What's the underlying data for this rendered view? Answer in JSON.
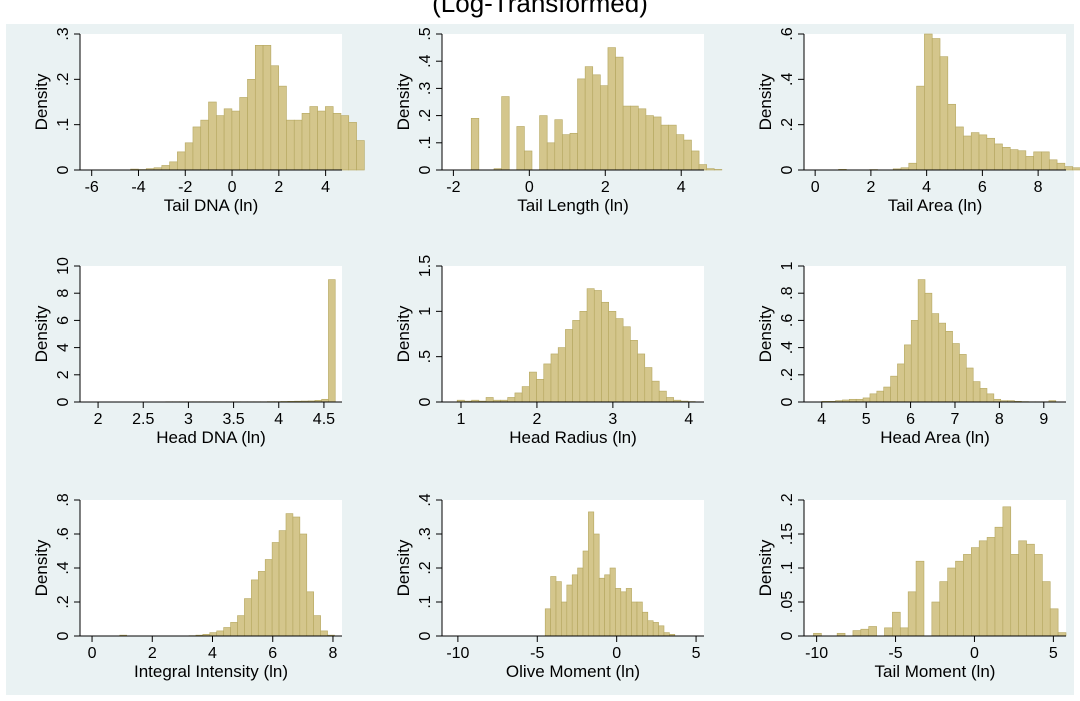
{
  "figure": {
    "title": "(Log-Transformed)",
    "colors": {
      "background": "#ffffff",
      "panel_bg": "#eaf2f3",
      "plot_bg": "#ffffff",
      "bar_fill": "#d4c68c",
      "bar_edge": "#b4a65e",
      "axis": "#000000"
    }
  },
  "chart_data": [
    {
      "type": "bar",
      "subtype": "histogram",
      "xlabel": "Tail DNA (ln)",
      "ylabel": "Density",
      "xlim": [
        -6.5,
        4.7
      ],
      "ylim": [
        0,
        0.3
      ],
      "xticks": [
        -6,
        -4,
        -2,
        0,
        2,
        4
      ],
      "xtick_labels": [
        "-6",
        "-4",
        "-2",
        "0",
        "2",
        "4"
      ],
      "yticks": [
        0,
        0.1,
        0.2,
        0.3
      ],
      "ytick_labels": [
        "0",
        ".1",
        ".2",
        ".3"
      ],
      "bin_start": -6.0,
      "bin_width": 0.333,
      "values": [
        0,
        0,
        0,
        0,
        0,
        0.002,
        0.001,
        0.003,
        0.005,
        0.01,
        0.018,
        0.04,
        0.06,
        0.095,
        0.11,
        0.15,
        0.12,
        0.135,
        0.13,
        0.16,
        0.2,
        0.275,
        0.275,
        0.23,
        0.185,
        0.11,
        0.11,
        0.125,
        0.14,
        0.13,
        0.14,
        0.125,
        0.12,
        0.105,
        0.065
      ]
    },
    {
      "type": "bar",
      "subtype": "histogram",
      "xlabel": "Tail Length (ln)",
      "ylabel": "Density",
      "xlim": [
        -2.3,
        4.6
      ],
      "ylim": [
        0,
        0.5
      ],
      "xticks": [
        -2,
        0,
        2,
        4
      ],
      "xtick_labels": [
        "-2",
        "0",
        "2",
        "4"
      ],
      "yticks": [
        0,
        0.1,
        0.2,
        0.3,
        0.4,
        0.5
      ],
      "ytick_labels": [
        "0",
        ".1",
        ".2",
        ".3",
        ".4",
        ".5"
      ],
      "bin_start": -1.53,
      "bin_width": 0.2,
      "values": [
        0.19,
        0,
        0,
        0.005,
        0.27,
        0,
        0.16,
        0.07,
        0,
        0.2,
        0.1,
        0.185,
        0.13,
        0.135,
        0.335,
        0.38,
        0.35,
        0.31,
        0.45,
        0.415,
        0.235,
        0.235,
        0.225,
        0.2,
        0.195,
        0.165,
        0.165,
        0.13,
        0.11,
        0.07,
        0.02,
        0.005,
        0.002
      ]
    },
    {
      "type": "bar",
      "subtype": "histogram",
      "xlabel": "Tail Area (ln)",
      "ylabel": "Density",
      "xlim": [
        -0.4,
        9.0
      ],
      "ylim": [
        0,
        0.6
      ],
      "xticks": [
        0,
        2,
        4,
        6,
        8
      ],
      "xtick_labels": [
        "0",
        "2",
        "4",
        "6",
        "8"
      ],
      "yticks": [
        0,
        0.2,
        0.4,
        0.6
      ],
      "ytick_labels": [
        "0",
        ".2",
        ".4",
        ".6"
      ],
      "bin_start": 0.0,
      "bin_width": 0.28,
      "values": [
        0,
        0,
        0,
        0.003,
        0,
        0,
        0,
        0.002,
        0,
        0,
        0.005,
        0.01,
        0.03,
        0.37,
        0.61,
        0.58,
        0.5,
        0.29,
        0.19,
        0.15,
        0.165,
        0.155,
        0.14,
        0.115,
        0.1,
        0.09,
        0.085,
        0.06,
        0.08,
        0.08,
        0.045,
        0.03,
        0.015,
        0.01,
        0.002
      ]
    },
    {
      "type": "bar",
      "subtype": "histogram",
      "xlabel": "Head DNA (ln)",
      "ylabel": "Density",
      "xlim": [
        1.8,
        4.7
      ],
      "ylim": [
        0,
        10
      ],
      "xticks": [
        2,
        2.5,
        3,
        3.5,
        4,
        4.5
      ],
      "xtick_labels": [
        "2",
        "2.5",
        "3",
        "3.5",
        "4",
        "4.5"
      ],
      "yticks": [
        0,
        2,
        4,
        6,
        8,
        10
      ],
      "ytick_labels": [
        "0",
        "2",
        "4",
        "6",
        "8",
        "10"
      ],
      "bin_start": 2.0,
      "bin_width": 0.075,
      "values": [
        0,
        0,
        0,
        0,
        0,
        0,
        0,
        0,
        0,
        0,
        0.02,
        0.02,
        0.02,
        0.02,
        0.02,
        0.02,
        0.02,
        0.02,
        0.02,
        0.02,
        0.02,
        0.02,
        0.02,
        0.02,
        0.02,
        0.03,
        0.03,
        0.04,
        0.05,
        0.06,
        0.07,
        0.08,
        0.12,
        0.2,
        9.0
      ]
    },
    {
      "type": "bar",
      "subtype": "histogram",
      "xlabel": "Head Radius (ln)",
      "ylabel": "Density",
      "xlim": [
        0.75,
        4.2
      ],
      "ylim": [
        0,
        1.5
      ],
      "xticks": [
        1,
        2,
        3,
        4
      ],
      "xtick_labels": [
        "1",
        "2",
        "3",
        "4"
      ],
      "yticks": [
        0,
        0.5,
        1,
        1.5
      ],
      "ytick_labels": [
        "0",
        ".5",
        "1",
        "1.5"
      ],
      "bin_start": 0.95,
      "bin_width": 0.095,
      "values": [
        0.02,
        0.01,
        0.02,
        0.01,
        0.05,
        0.02,
        0.02,
        0.05,
        0.1,
        0.17,
        0.33,
        0.25,
        0.42,
        0.53,
        0.6,
        0.8,
        0.9,
        1.0,
        1.25,
        1.23,
        1.1,
        1.0,
        0.92,
        0.83,
        0.68,
        0.53,
        0.38,
        0.23,
        0.12,
        0.05,
        0.02,
        0.01,
        0.005
      ]
    },
    {
      "type": "bar",
      "subtype": "histogram",
      "xlabel": "Head Area (ln)",
      "ylabel": "Density",
      "xlim": [
        3.6,
        9.5
      ],
      "ylim": [
        0,
        1.0
      ],
      "xticks": [
        4,
        5,
        6,
        7,
        8,
        9
      ],
      "xtick_labels": [
        "4",
        "5",
        "6",
        "7",
        "8",
        "9"
      ],
      "yticks": [
        0,
        0.2,
        0.4,
        0.6,
        0.8,
        1
      ],
      "ytick_labels": [
        "0",
        ".2",
        ".4",
        ".6",
        ".8",
        "1"
      ],
      "bin_start": 4.0,
      "bin_width": 0.155,
      "values": [
        0.005,
        0.005,
        0.01,
        0.015,
        0.02,
        0.02,
        0.03,
        0.06,
        0.08,
        0.11,
        0.19,
        0.28,
        0.42,
        0.6,
        0.9,
        0.8,
        0.65,
        0.58,
        0.52,
        0.43,
        0.35,
        0.25,
        0.15,
        0.1,
        0.06,
        0.02,
        0.01,
        0.01,
        0.005,
        0.003,
        0.002,
        0.002,
        0.002,
        0.01
      ]
    },
    {
      "type": "bar",
      "subtype": "histogram",
      "xlabel": "Integral Intensity (ln)",
      "ylabel": "Density",
      "xlim": [
        -0.4,
        8.3
      ],
      "ylim": [
        0,
        0.8
      ],
      "xticks": [
        0,
        2,
        4,
        6,
        8
      ],
      "xtick_labels": [
        "0",
        "2",
        "4",
        "6",
        "8"
      ],
      "yticks": [
        0,
        0.2,
        0.4,
        0.6,
        0.8
      ],
      "ytick_labels": [
        "0",
        ".2",
        ".4",
        ".6",
        ".8"
      ],
      "bin_start": 0.0,
      "bin_width": 0.23,
      "values": [
        0,
        0,
        0,
        0,
        0.005,
        0,
        0,
        0,
        0,
        0,
        0,
        0,
        0,
        0,
        0.002,
        0.005,
        0.01,
        0.02,
        0.03,
        0.05,
        0.08,
        0.12,
        0.22,
        0.33,
        0.38,
        0.45,
        0.55,
        0.62,
        0.72,
        0.7,
        0.6,
        0.26,
        0.12,
        0.03,
        0.005
      ]
    },
    {
      "type": "bar",
      "subtype": "histogram",
      "xlabel": "Olive Moment (ln)",
      "ylabel": "Density",
      "xlim": [
        -11.0,
        5.5
      ],
      "ylim": [
        0,
        0.4
      ],
      "xticks": [
        -10,
        -5,
        0,
        5
      ],
      "xtick_labels": [
        "-10",
        "-5",
        "0",
        "5"
      ],
      "yticks": [
        0,
        0.1,
        0.2,
        0.3,
        0.4
      ],
      "ytick_labels": [
        "0",
        ".1",
        ".2",
        ".3",
        ".4"
      ],
      "bin_start": -4.5,
      "bin_width": 0.34,
      "values": [
        0.08,
        0.175,
        0.16,
        0.1,
        0.15,
        0.18,
        0.2,
        0.25,
        0.365,
        0.3,
        0.17,
        0.18,
        0.2,
        0.14,
        0.13,
        0.14,
        0.1,
        0.1,
        0.07,
        0.045,
        0.04,
        0.03,
        0.01,
        0.005
      ]
    },
    {
      "type": "bar",
      "subtype": "histogram",
      "xlabel": "Tail Moment (ln)",
      "ylabel": "Density",
      "xlim": [
        -10.8,
        5.8
      ],
      "ylim": [
        0,
        0.2
      ],
      "xticks": [
        -10,
        -5,
        0,
        5
      ],
      "xtick_labels": [
        "-10",
        "-5",
        "0",
        "5"
      ],
      "yticks": [
        0,
        0.05,
        0.1,
        0.15,
        0.2
      ],
      "ytick_labels": [
        "0",
        ".05",
        ".1",
        ".15",
        ".2"
      ],
      "bin_start": -10.2,
      "bin_width": 0.5,
      "values": [
        0.004,
        0,
        0,
        0.004,
        0,
        0.008,
        0.01,
        0.014,
        0,
        0.012,
        0.035,
        0.012,
        0.065,
        0.11,
        0,
        0.05,
        0.08,
        0.1,
        0.11,
        0.12,
        0.13,
        0.14,
        0.145,
        0.16,
        0.19,
        0.12,
        0.14,
        0.135,
        0.12,
        0.08,
        0.04,
        0.005
      ]
    }
  ]
}
